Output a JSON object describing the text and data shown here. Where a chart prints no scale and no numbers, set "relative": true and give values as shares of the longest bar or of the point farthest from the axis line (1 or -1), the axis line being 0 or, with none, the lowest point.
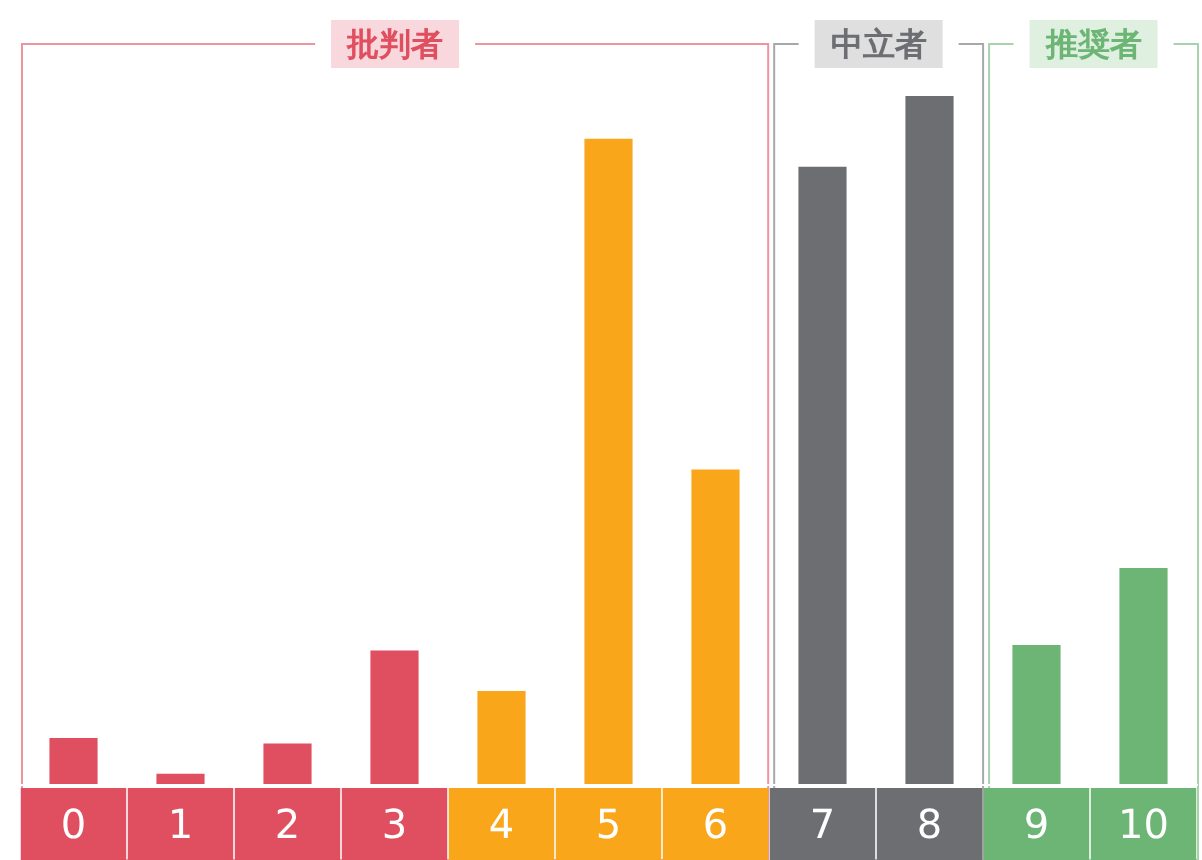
{
  "chart_data": {
    "type": "bar",
    "relative": true,
    "legend": false,
    "categories": [
      "0",
      "1",
      "2",
      "3",
      "4",
      "5",
      "6",
      "7",
      "8",
      "9",
      "10"
    ],
    "series": [
      {
        "name": "批判者",
        "color": "#e04f5f",
        "colors": [
          "#e04f5f",
          "#e04f5f",
          "#e04f5f",
          "#e04f5f",
          "#f9a61a",
          "#f9a61a",
          "#f9a61a",
          null,
          null,
          null,
          null
        ],
        "values": [
          0.067,
          0.015,
          0.059,
          0.194,
          0.135,
          0.938,
          0.457,
          null,
          null,
          null,
          null
        ]
      },
      {
        "name": "中立者",
        "color": "#6d6e71",
        "values": [
          null,
          null,
          null,
          null,
          null,
          null,
          null,
          0.897,
          1,
          null,
          null
        ]
      },
      {
        "name": "推奨者",
        "color": "#6cb574",
        "values": [
          null,
          null,
          null,
          null,
          null,
          null,
          null,
          null,
          null,
          0.202,
          0.314
        ]
      }
    ]
  }
}
